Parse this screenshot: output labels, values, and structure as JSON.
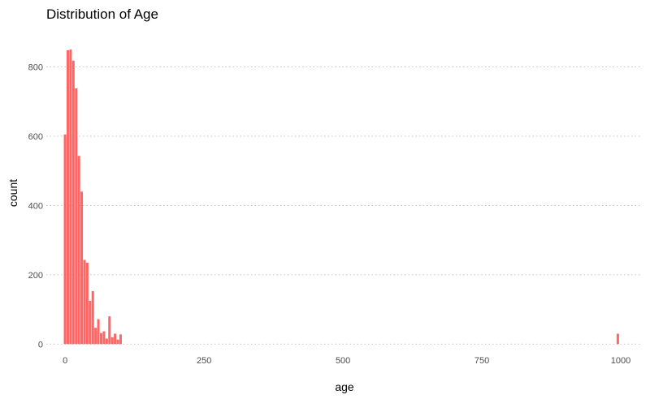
{
  "chart_data": {
    "type": "bar",
    "title": "Distribution of Age",
    "xlabel": "age",
    "ylabel": "count",
    "xlim": [
      -34,
      1038
    ],
    "ylim": [
      -18,
      904
    ],
    "xticks": [
      0,
      250,
      500,
      750,
      1000
    ],
    "yticks": [
      0,
      200,
      400,
      600,
      800
    ],
    "bin_width": 5,
    "grid": "horizontal dotted",
    "bar_color": "#ff6666",
    "bins": [
      {
        "x": 0,
        "count": 605
      },
      {
        "x": 5,
        "count": 848
      },
      {
        "x": 10,
        "count": 850
      },
      {
        "x": 15,
        "count": 818
      },
      {
        "x": 20,
        "count": 738
      },
      {
        "x": 25,
        "count": 543
      },
      {
        "x": 30,
        "count": 440
      },
      {
        "x": 35,
        "count": 243
      },
      {
        "x": 40,
        "count": 235
      },
      {
        "x": 45,
        "count": 125
      },
      {
        "x": 50,
        "count": 153
      },
      {
        "x": 55,
        "count": 47
      },
      {
        "x": 60,
        "count": 72
      },
      {
        "x": 65,
        "count": 32
      },
      {
        "x": 70,
        "count": 37
      },
      {
        "x": 75,
        "count": 16
      },
      {
        "x": 80,
        "count": 80
      },
      {
        "x": 85,
        "count": 20
      },
      {
        "x": 90,
        "count": 30
      },
      {
        "x": 95,
        "count": 13
      },
      {
        "x": 100,
        "count": 28
      },
      {
        "x": 995,
        "count": 30
      }
    ]
  }
}
